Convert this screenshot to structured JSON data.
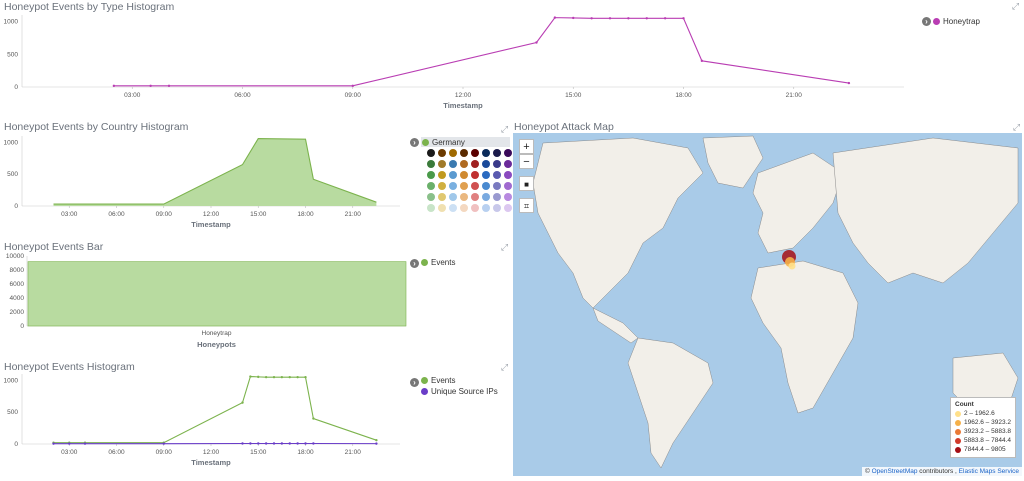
{
  "colors": {
    "magenta": "#b93db3",
    "green": "#7cb34d",
    "green_fill": "#b8dba0",
    "purple": "#6a3dc8"
  },
  "panel_type": {
    "title": "Honeypot Events by Type Histogram",
    "legend": [
      "Honeytrap"
    ]
  },
  "panel_country": {
    "title": "Honeypot Events by Country Histogram",
    "legend_selected": "Germany"
  },
  "panel_bar": {
    "title": "Honeypot Events Bar",
    "legend": [
      "Events"
    ]
  },
  "panel_hist": {
    "title": "Honeypot Events Histogram",
    "legend": [
      "Events",
      "Unique Source IPs"
    ]
  },
  "map": {
    "title": "Honeypot Attack Map",
    "zoom_in": "+",
    "zoom_out": "−",
    "legend_title": "Count",
    "legend_items": [
      {
        "label": "2 – 1962.6",
        "color": "#ffe08a"
      },
      {
        "label": "1962.6 – 3923.2",
        "color": "#f5b049"
      },
      {
        "label": "3923.2 – 5883.8",
        "color": "#ea7a36"
      },
      {
        "label": "5883.8 – 7844.4",
        "color": "#d23b2a"
      },
      {
        "label": "7844.4 – 9805",
        "color": "#a50f15"
      }
    ],
    "attribution_symbol": "©",
    "attribution_osm": "OpenStreetMap",
    "attribution_contrib": "contributors ,",
    "attribution_ems": "Elastic Maps Service"
  },
  "chart_data": [
    {
      "type": "line",
      "title": "Honeypot Events by Type Histogram",
      "xlabel": "Timestamp",
      "x_ticks": [
        "03:00",
        "06:00",
        "09:00",
        "12:00",
        "15:00",
        "18:00",
        "21:00"
      ],
      "y_ticks": [
        "0",
        "500",
        "1000"
      ],
      "ylim": [
        0,
        1100
      ],
      "series": [
        {
          "name": "Honeytrap",
          "x": [
            2.5,
            3.5,
            4,
            9,
            14,
            14.5,
            15,
            15.5,
            16,
            16.5,
            17,
            17.5,
            18,
            18.5,
            22.5
          ],
          "y": [
            18,
            18,
            18,
            18,
            680,
            1060,
            1055,
            1050,
            1050,
            1050,
            1050,
            1050,
            1050,
            400,
            60
          ]
        }
      ]
    },
    {
      "type": "area",
      "title": "Honeypot Events by Country Histogram",
      "xlabel": "Timestamp",
      "x_ticks": [
        "03:00",
        "06:00",
        "09:00",
        "12:00",
        "15:00",
        "18:00",
        "21:00"
      ],
      "y_ticks": [
        "0",
        "500",
        "1000"
      ],
      "ylim": [
        0,
        1100
      ],
      "series": [
        {
          "name": "Germany",
          "x": [
            2,
            9,
            14,
            15,
            18,
            18.5,
            22.5
          ],
          "y": [
            30,
            30,
            650,
            1060,
            1050,
            420,
            60
          ]
        }
      ]
    },
    {
      "type": "bar",
      "title": "Honeypot Events Bar",
      "xlabel": "Honeypots",
      "categories": [
        "Honeytrap"
      ],
      "y_ticks": [
        "0",
        "2000",
        "4000",
        "6000",
        "8000",
        "10000"
      ],
      "ylim": [
        0,
        10000
      ],
      "series": [
        {
          "name": "Events",
          "values": [
            9200
          ]
        }
      ]
    },
    {
      "type": "line",
      "title": "Honeypot Events Histogram",
      "xlabel": "Timestamp",
      "x_ticks": [
        "03:00",
        "06:00",
        "09:00",
        "12:00",
        "15:00",
        "18:00",
        "21:00"
      ],
      "y_ticks": [
        "0",
        "500",
        "1000"
      ],
      "ylim": [
        0,
        1100
      ],
      "series": [
        {
          "name": "Events",
          "x": [
            2,
            3,
            4,
            9,
            14,
            14.5,
            15,
            15.5,
            16,
            16.5,
            17,
            17.5,
            18,
            18.5,
            22.5
          ],
          "y": [
            20,
            20,
            20,
            20,
            650,
            1060,
            1055,
            1050,
            1050,
            1050,
            1050,
            1050,
            1050,
            400,
            60
          ]
        },
        {
          "name": "Unique Source IPs",
          "x": [
            2,
            3,
            4,
            9,
            14,
            14.5,
            15,
            15.5,
            16,
            16.5,
            17,
            17.5,
            18,
            18.5,
            22.5
          ],
          "y": [
            5,
            5,
            5,
            5,
            8,
            8,
            8,
            8,
            8,
            8,
            8,
            8,
            8,
            8,
            6
          ]
        }
      ]
    }
  ]
}
